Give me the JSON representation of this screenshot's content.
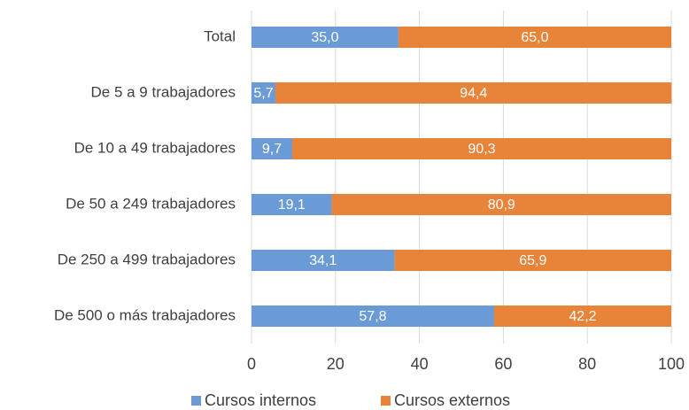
{
  "chart_data": {
    "type": "bar",
    "orientation": "horizontal",
    "stacked": true,
    "categories": [
      "Total",
      "De 5 a 9 trabajadores",
      "De 10 a 49 trabajadores",
      "De 50 a 249 trabajadores",
      "De 250 a 499 trabajadores",
      "De 500 o más trabajadores"
    ],
    "series": [
      {
        "name": "Cursos internos",
        "color": "#6a9bd6",
        "values": [
          35.0,
          5.7,
          9.7,
          19.1,
          34.1,
          57.8
        ],
        "value_labels": [
          "35,0",
          "5,7",
          "9,7",
          "19,1",
          "34,1",
          "57,8"
        ]
      },
      {
        "name": "Cursos externos",
        "color": "#e8833a",
        "values": [
          65.0,
          94.4,
          90.3,
          80.9,
          65.9,
          42.2
        ],
        "value_labels": [
          "65,0",
          "94,4",
          "90,3",
          "80,9",
          "65,9",
          "42,2"
        ]
      }
    ],
    "xlim": [
      0,
      100
    ],
    "xticks": [
      0,
      20,
      40,
      60,
      80,
      100
    ],
    "grid": true,
    "legend": "bottom"
  }
}
